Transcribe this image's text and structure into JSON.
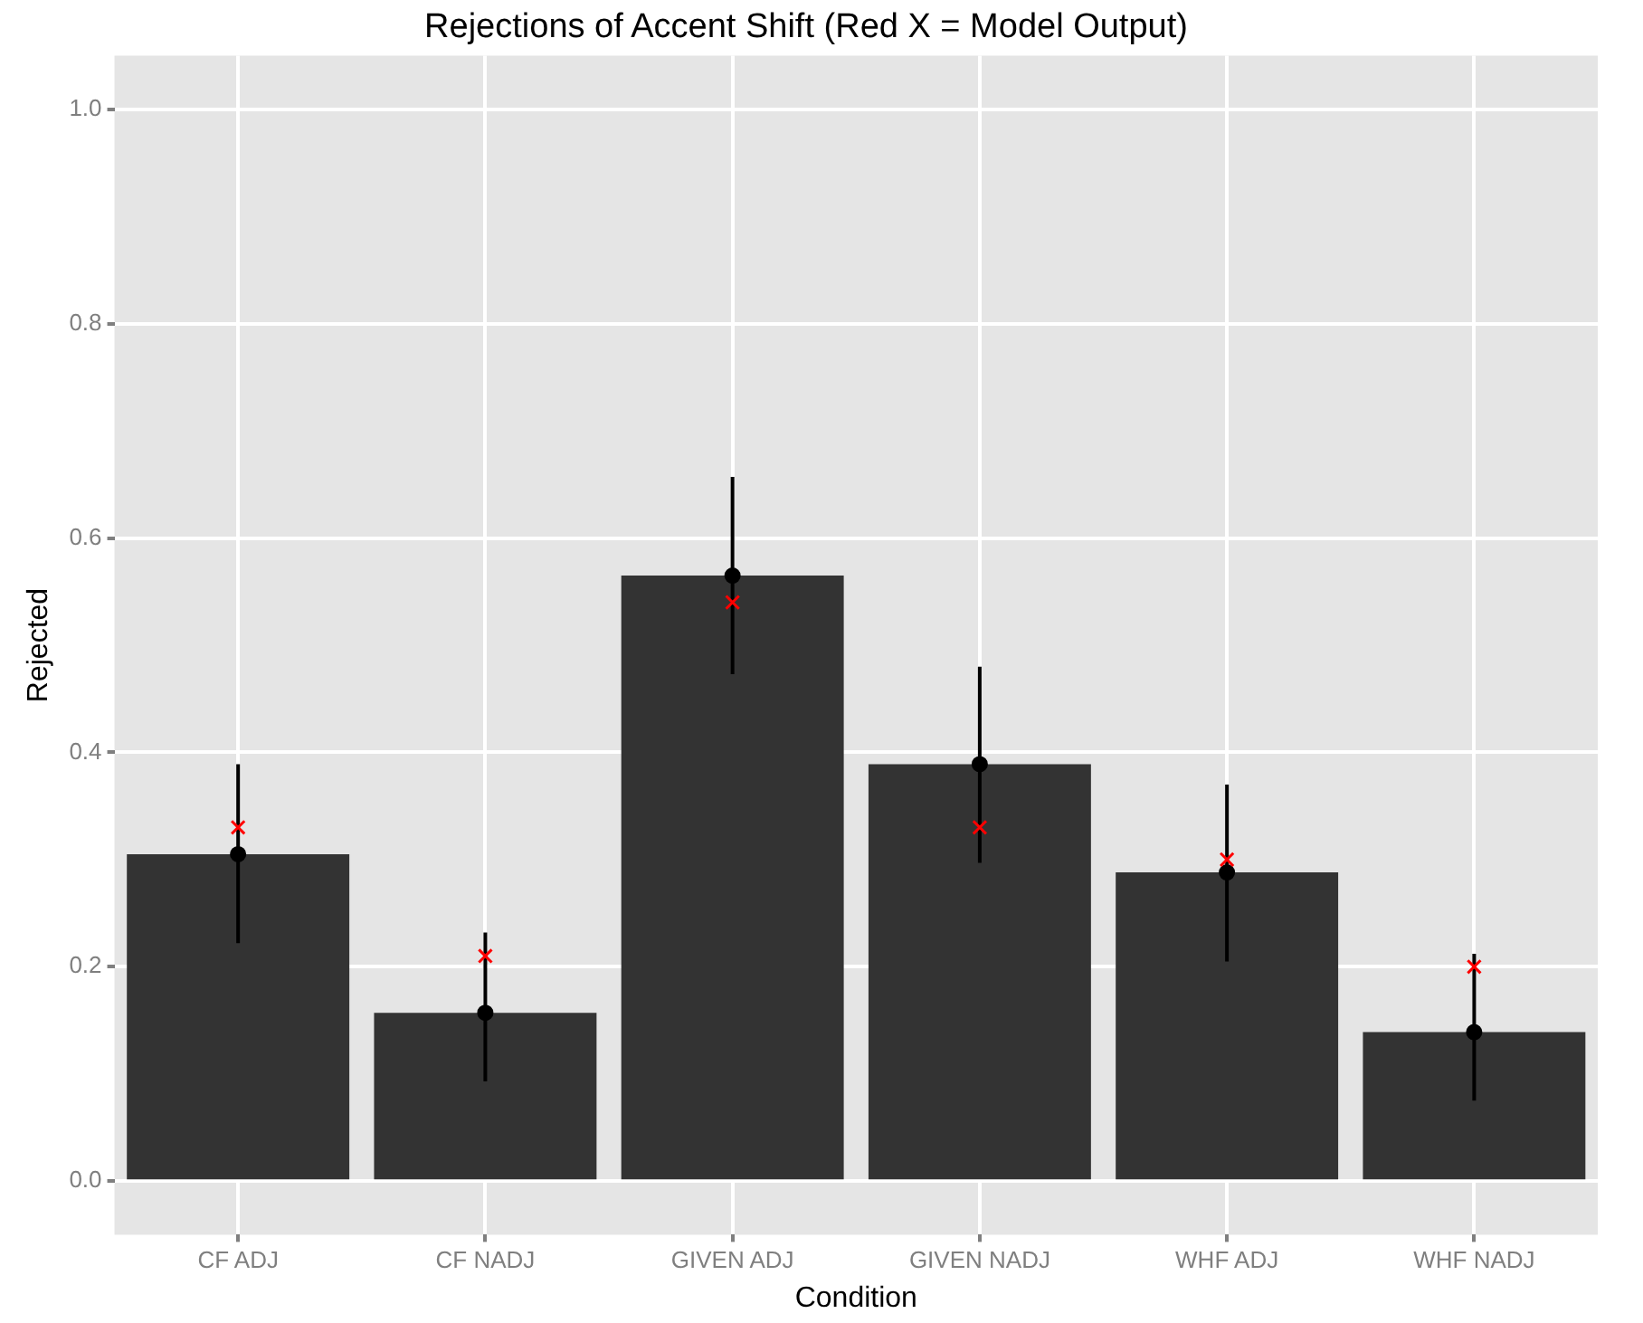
{
  "chart_data": {
    "type": "bar",
    "title": "Rejections of Accent Shift (Red X = Model Output)",
    "xlabel": "Condition",
    "ylabel": "Rejected",
    "categories": [
      "CF ADJ",
      "CF NADJ",
      "GIVEN ADJ",
      "GIVEN NADJ",
      "WHF ADJ",
      "WHF NADJ"
    ],
    "series": [
      {
        "color": "#333333",
        "values": [
          0.305,
          0.157,
          0.565,
          0.389,
          0.288,
          0.139
        ],
        "errors": [
          [
            0.222,
            0.389
          ],
          [
            0.093,
            0.232
          ],
          [
            0.473,
            0.657
          ],
          [
            0.297,
            0.48
          ],
          [
            0.205,
            0.37
          ],
          [
            0.075,
            0.212
          ]
        ]
      },
      {
        "type": "scatter",
        "x": [
          "CF ADJ",
          "CF NADJ",
          "GIVEN ADJ",
          "GIVEN NADJ",
          "WHF ADJ",
          "WHF NADJ"
        ],
        "color": "#000000",
        "marker": "circle",
        "values": [
          0.305,
          0.157,
          0.565,
          0.389,
          0.288,
          0.139
        ]
      },
      {
        "type": "scatter",
        "x": [
          "CF ADJ",
          "CF NADJ",
          "GIVEN ADJ",
          "GIVEN NADJ",
          "WHF ADJ",
          "WHF NADJ"
        ],
        "color": "#ff0000",
        "marker": "cross",
        "values": [
          0.33,
          0.21,
          0.54,
          0.33,
          0.3,
          0.2
        ]
      }
    ],
    "ylim": [
      -0.05,
      1.05
    ],
    "yticks": [
      "0.0",
      0.2,
      0.4,
      0.6,
      0.8,
      "1.0"
    ],
    "grid": true,
    "legend": false
  }
}
